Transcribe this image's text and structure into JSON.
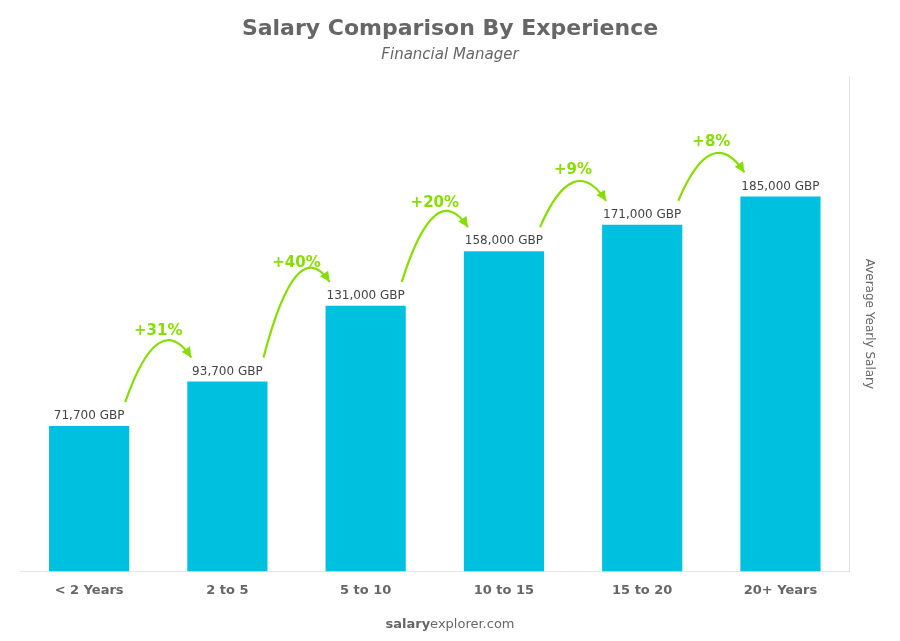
{
  "chart_data": {
    "type": "bar",
    "title": "Salary Comparison By Experience",
    "subtitle": "Financial Manager",
    "y_label": "Average Yearly Salary",
    "footer": [
      "salary",
      "explorer.com"
    ],
    "categories": [
      "< 2 Years",
      "2 to 5",
      "5 to 10",
      "10 to 15",
      "15 to 20",
      "20+ Years"
    ],
    "values": [
      71700,
      93700,
      131000,
      158000,
      171000,
      185000
    ],
    "value_labels": [
      "71,700 GBP",
      "93,700 GBP",
      "131,000 GBP",
      "158,000 GBP",
      "171,000 GBP",
      "185,000 GBP"
    ],
    "data_labels": true,
    "color": "#00c0e0",
    "ylim": [
      0,
      244200
    ],
    "grid": false,
    "tick_labels": "x",
    "annotations": [
      {
        "from": "< 2 Years",
        "to": "2 to 5",
        "text": "+31%",
        "color": "#88dd00"
      },
      {
        "from": "2 to 5",
        "to": "5 to 10",
        "text": "+40%",
        "color": "#88dd00"
      },
      {
        "from": "5 to 10",
        "to": "10 to 15",
        "text": "+20%",
        "color": "#88dd00"
      },
      {
        "from": "10 to 15",
        "to": "15 to 20",
        "text": "+9%",
        "color": "#88dd00"
      },
      {
        "from": "15 to 20",
        "to": "20+ Years",
        "text": "+8%",
        "color": "#88dd00"
      }
    ]
  }
}
